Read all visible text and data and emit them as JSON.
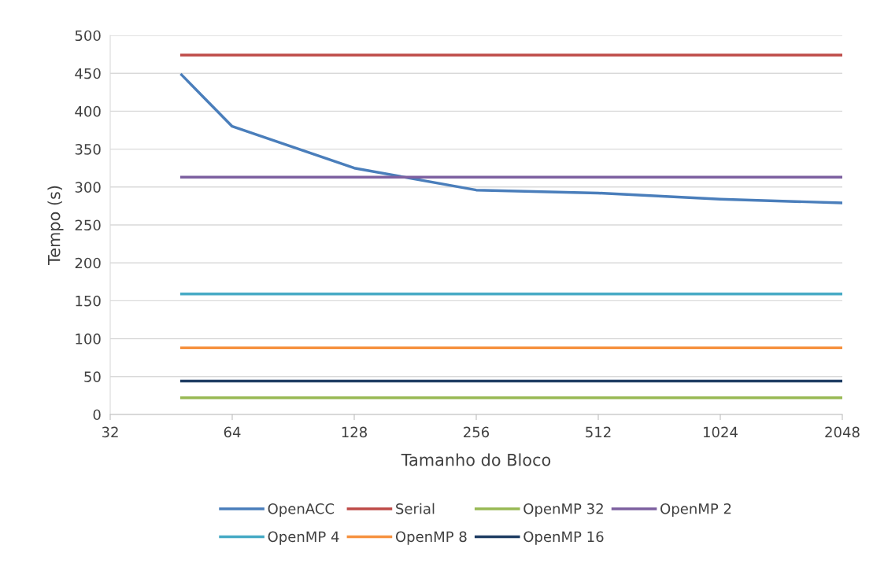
{
  "chart_data": {
    "type": "line",
    "xlabel": "Tamanho do Bloco",
    "ylabel": "Tempo (s)",
    "log": "x",
    "x": [
      48,
      64,
      128,
      256,
      512,
      1024,
      2048
    ],
    "xlim": [
      32,
      2048
    ],
    "xticks": [
      32,
      64,
      128,
      256,
      512,
      1024,
      2048
    ],
    "ylim": [
      0,
      500
    ],
    "yticks": [
      0,
      50,
      100,
      150,
      200,
      250,
      300,
      350,
      400,
      450,
      500
    ],
    "grid": "y",
    "legend": "bottom",
    "marker": "none",
    "line_style": "solid",
    "series": [
      {
        "name": "OpenACC",
        "color": "#4a7ebb",
        "values": [
          448,
          380,
          325,
          296,
          292,
          284,
          279
        ]
      },
      {
        "name": "Serial",
        "color": "#be4b48",
        "values": [
          474,
          474,
          474,
          474,
          474,
          474,
          474
        ]
      },
      {
        "name": "OpenMP 32",
        "color": "#98b954",
        "values": [
          22,
          22,
          22,
          22,
          22,
          22,
          22
        ]
      },
      {
        "name": "OpenMP 2",
        "color": "#7d60a0",
        "values": [
          313,
          313,
          313,
          313,
          313,
          313,
          313
        ]
      },
      {
        "name": "OpenMP 4",
        "color": "#46aac5",
        "values": [
          159,
          159,
          159,
          159,
          159,
          159,
          159
        ]
      },
      {
        "name": "OpenMP 8",
        "color": "#f69240",
        "values": [
          88,
          88,
          88,
          88,
          88,
          88,
          88
        ]
      },
      {
        "name": "OpenMP 16",
        "color": "#1f3d63",
        "values": [
          44,
          44,
          44,
          44,
          44,
          44,
          44
        ]
      }
    ]
  }
}
